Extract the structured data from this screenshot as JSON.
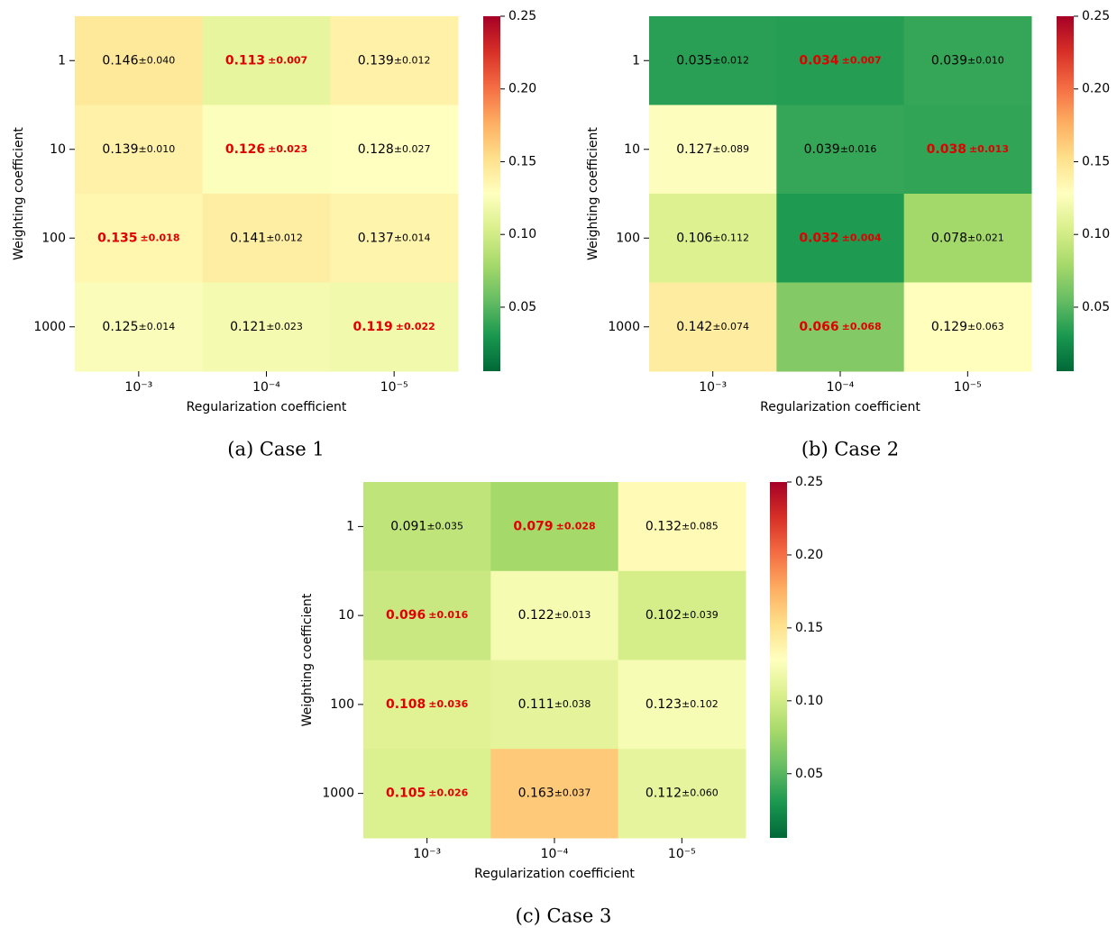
{
  "chart_data": [
    {
      "type": "heatmap",
      "caption": "(a) Case 1",
      "x_label": "Regularization coefficient",
      "y_label": "Weighting coefficient",
      "x_categories": [
        "10⁻³",
        "10⁻⁴",
        "10⁻⁵"
      ],
      "y_categories": [
        "1",
        "10",
        "100",
        "1000"
      ],
      "values": [
        [
          0.146,
          0.113,
          0.139
        ],
        [
          0.139,
          0.126,
          0.128
        ],
        [
          0.135,
          0.141,
          0.137
        ],
        [
          0.125,
          0.121,
          0.119
        ]
      ],
      "errors": [
        [
          0.04,
          0.007,
          0.012
        ],
        [
          0.01,
          0.023,
          0.027
        ],
        [
          0.018,
          0.012,
          0.014
        ],
        [
          0.014,
          0.023,
          0.022
        ]
      ],
      "error_labels": [
        [
          "±0.040",
          "±0.007",
          "±0.012"
        ],
        [
          "±0.010",
          "±0.023",
          "±0.027"
        ],
        [
          "±0.018",
          "±0.012",
          "±0.014"
        ],
        [
          "±0.014",
          "±0.023",
          "±0.022"
        ]
      ],
      "highlight": [
        [
          false,
          true,
          false
        ],
        [
          false,
          true,
          false
        ],
        [
          true,
          false,
          false
        ],
        [
          false,
          false,
          true
        ]
      ],
      "highlight_color": "#e00000",
      "colormap": "RdYlGn_r",
      "zlim": [
        0.006,
        0.25
      ],
      "zticks": [
        0.05,
        {
          "value": 0.1,
          "label": "0.10"
        },
        0.15,
        {
          "value": 0.2,
          "label": "0.20"
        },
        0.25
      ]
    },
    {
      "type": "heatmap",
      "caption": "(b) Case 2",
      "x_label": "Regularization coefficient",
      "y_label": "Weighting coefficient",
      "x_categories": [
        "10⁻³",
        "10⁻⁴",
        "10⁻⁵"
      ],
      "y_categories": [
        "1",
        "10",
        "100",
        "1000"
      ],
      "values": [
        [
          0.035,
          0.034,
          0.039
        ],
        [
          0.127,
          0.039,
          0.038
        ],
        [
          0.106,
          0.032,
          0.078
        ],
        [
          0.142,
          0.066,
          0.129
        ]
      ],
      "errors": [
        [
          0.012,
          0.007,
          0.01
        ],
        [
          0.089,
          0.016,
          0.013
        ],
        [
          0.112,
          0.004,
          0.021
        ],
        [
          0.074,
          0.068,
          0.063
        ]
      ],
      "error_labels": [
        [
          "±0.012",
          "±0.007",
          "±0.010"
        ],
        [
          "±0.089",
          "±0.016",
          "±0.013"
        ],
        [
          "±0.112",
          "±0.004",
          "±0.021"
        ],
        [
          "±0.074",
          "±0.068",
          "±0.063"
        ]
      ],
      "highlight": [
        [
          false,
          true,
          false
        ],
        [
          false,
          false,
          true
        ],
        [
          false,
          true,
          false
        ],
        [
          false,
          true,
          false
        ]
      ],
      "highlight_color": "#e00000",
      "colormap": "RdYlGn_r",
      "zlim": [
        0.006,
        0.25
      ],
      "zticks": [
        0.05,
        {
          "value": 0.1,
          "label": "0.10"
        },
        0.15,
        {
          "value": 0.2,
          "label": "0.20"
        },
        0.25
      ]
    },
    {
      "type": "heatmap",
      "caption": "(c) Case 3",
      "x_label": "Regularization coefficient",
      "y_label": "Weighting coefficient",
      "x_categories": [
        "10⁻³",
        "10⁻⁴",
        "10⁻⁵"
      ],
      "y_categories": [
        "1",
        "10",
        "100",
        "1000"
      ],
      "values": [
        [
          0.091,
          0.079,
          0.132
        ],
        [
          0.096,
          0.122,
          0.102
        ],
        [
          0.108,
          0.111,
          0.123
        ],
        [
          0.105,
          0.163,
          0.112
        ]
      ],
      "errors": [
        [
          0.035,
          0.028,
          0.085
        ],
        [
          0.016,
          0.013,
          0.039
        ],
        [
          0.036,
          0.038,
          0.102
        ],
        [
          0.026,
          0.037,
          0.06
        ]
      ],
      "error_labels": [
        [
          "±0.035",
          "±0.028",
          "±0.085"
        ],
        [
          "±0.016",
          "±0.013",
          "±0.039"
        ],
        [
          "±0.036",
          "±0.038",
          "±0.102"
        ],
        [
          "±0.026",
          "±0.037",
          "±0.060"
        ]
      ],
      "highlight": [
        [
          false,
          true,
          false
        ],
        [
          true,
          false,
          false
        ],
        [
          true,
          false,
          false
        ],
        [
          true,
          false,
          false
        ]
      ],
      "highlight_color": "#e00000",
      "colormap": "RdYlGn_r",
      "zlim": [
        0.006,
        0.25
      ],
      "zticks": [
        0.05,
        {
          "value": 0.1,
          "label": "0.10"
        },
        0.15,
        {
          "value": 0.2,
          "label": "0.20"
        },
        0.25
      ]
    }
  ]
}
